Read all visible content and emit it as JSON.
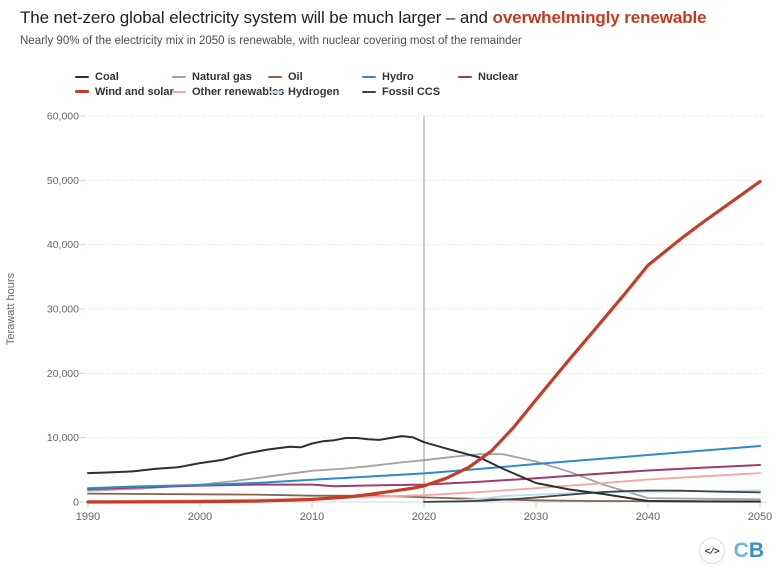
{
  "header": {
    "title_prefix": "The net-zero global electricity system will be much larger – and ",
    "title_emphasis": "overwhelmingly renewable",
    "subtitle": "Nearly 90% of the electricity mix in 2050 is renewable, with nuclear covering most of the remainder"
  },
  "footer": {
    "embed_icon_glyph": "</>",
    "logo_first": "C",
    "logo_second": "B"
  },
  "colors": {
    "title_text": "#1f1f1f",
    "title_emphasis": "#c43a20",
    "subtitle_text": "#4d4d4d",
    "axis_line": "#ccd6eb",
    "gridline": "#dddddd",
    "plotline": "#999999",
    "axis_text": "#666666",
    "legend_text": "#333333",
    "logo_c": "#6fb5e1",
    "logo_b": "#3e8ecb"
  },
  "chart_data": {
    "type": "line",
    "title": "The net-zero global electricity system will be much larger – and overwhelmingly renewable",
    "subtitle": "Nearly 90% of the electricity mix in 2050 is renewable, with nuclear covering most of the remainder",
    "xlabel": "",
    "ylabel": "Terawatt hours",
    "unit": "TWh",
    "xlim": [
      1990,
      2050
    ],
    "ylim": [
      0,
      60000
    ],
    "xticks": [
      1990,
      2000,
      2010,
      2020,
      2030,
      2040,
      2050
    ],
    "yticks": [
      0,
      10000,
      20000,
      30000,
      40000,
      50000,
      60000
    ],
    "ytick_labels": [
      "0",
      "10,000",
      "20,000",
      "30,000",
      "40,000",
      "50,000",
      "60,000"
    ],
    "grid": "horizontal-dotted",
    "legend_position": "top-left",
    "annotations": [
      {
        "type": "vertical-line",
        "x": 2020,
        "note": "historical / projection divide"
      }
    ],
    "series": [
      {
        "name": "Coal",
        "color": "#2f2f2f",
        "line_width": 2,
        "z": 8,
        "points": [
          [
            1990,
            4500
          ],
          [
            1992,
            4600
          ],
          [
            1994,
            4750
          ],
          [
            1996,
            5150
          ],
          [
            1998,
            5400
          ],
          [
            2000,
            6050
          ],
          [
            2002,
            6550
          ],
          [
            2004,
            7500
          ],
          [
            2006,
            8150
          ],
          [
            2008,
            8600
          ],
          [
            2009,
            8500
          ],
          [
            2010,
            9100
          ],
          [
            2011,
            9450
          ],
          [
            2012,
            9600
          ],
          [
            2013,
            9950
          ],
          [
            2014,
            9950
          ],
          [
            2015,
            9750
          ],
          [
            2016,
            9650
          ],
          [
            2017,
            9950
          ],
          [
            2018,
            10250
          ],
          [
            2019,
            10050
          ],
          [
            2020,
            9300
          ],
          [
            2022,
            8300
          ],
          [
            2025,
            6900
          ],
          [
            2027,
            5200
          ],
          [
            2030,
            2950
          ],
          [
            2033,
            1950
          ],
          [
            2036,
            1250
          ],
          [
            2040,
            150
          ],
          [
            2045,
            80
          ],
          [
            2050,
            60
          ]
        ]
      },
      {
        "name": "Natural gas",
        "color": "#a3a3a3",
        "line_width": 1.8,
        "z": 1,
        "points": [
          [
            1990,
            1750
          ],
          [
            1995,
            2100
          ],
          [
            2000,
            2700
          ],
          [
            2003,
            3250
          ],
          [
            2005,
            3700
          ],
          [
            2008,
            4400
          ],
          [
            2010,
            4850
          ],
          [
            2013,
            5200
          ],
          [
            2015,
            5550
          ],
          [
            2018,
            6150
          ],
          [
            2020,
            6500
          ],
          [
            2023,
            7100
          ],
          [
            2025,
            7450
          ],
          [
            2027,
            7450
          ],
          [
            2030,
            6300
          ],
          [
            2033,
            4700
          ],
          [
            2036,
            2700
          ],
          [
            2040,
            600
          ],
          [
            2045,
            500
          ],
          [
            2050,
            420
          ]
        ]
      },
      {
        "name": "Oil",
        "color": "#84644e",
        "line_width": 1.8,
        "z": 2,
        "points": [
          [
            1990,
            1300
          ],
          [
            1995,
            1250
          ],
          [
            2000,
            1200
          ],
          [
            2005,
            1150
          ],
          [
            2010,
            980
          ],
          [
            2015,
            960
          ],
          [
            2018,
            850
          ],
          [
            2020,
            720
          ],
          [
            2025,
            460
          ],
          [
            2030,
            260
          ],
          [
            2035,
            160
          ],
          [
            2040,
            120
          ],
          [
            2050,
            100
          ]
        ]
      },
      {
        "name": "Hydro",
        "color": "#3089cf",
        "line_width": 2,
        "z": 6,
        "points": [
          [
            1990,
            2150
          ],
          [
            1995,
            2450
          ],
          [
            2000,
            2650
          ],
          [
            2005,
            2950
          ],
          [
            2010,
            3450
          ],
          [
            2015,
            3950
          ],
          [
            2020,
            4450
          ],
          [
            2025,
            5150
          ],
          [
            2030,
            5900
          ],
          [
            2035,
            6600
          ],
          [
            2040,
            7300
          ],
          [
            2045,
            8000
          ],
          [
            2050,
            8700
          ]
        ]
      },
      {
        "name": "Nuclear",
        "color": "#a03c68",
        "line_width": 2,
        "z": 5,
        "points": [
          [
            1990,
            2000
          ],
          [
            1995,
            2300
          ],
          [
            2000,
            2550
          ],
          [
            2005,
            2700
          ],
          [
            2010,
            2700
          ],
          [
            2012,
            2450
          ],
          [
            2015,
            2570
          ],
          [
            2020,
            2700
          ],
          [
            2025,
            3150
          ],
          [
            2030,
            3700
          ],
          [
            2035,
            4300
          ],
          [
            2040,
            4900
          ],
          [
            2045,
            5350
          ],
          [
            2050,
            5750
          ]
        ]
      },
      {
        "name": "Wind and solar",
        "color": "#c63c24",
        "line_width": 3.2,
        "z": 9,
        "points": [
          [
            1990,
            5
          ],
          [
            1995,
            15
          ],
          [
            2000,
            40
          ],
          [
            2005,
            130
          ],
          [
            2010,
            400
          ],
          [
            2013,
            750
          ],
          [
            2015,
            1150
          ],
          [
            2017,
            1650
          ],
          [
            2019,
            2150
          ],
          [
            2020,
            2500
          ],
          [
            2022,
            3700
          ],
          [
            2024,
            5400
          ],
          [
            2026,
            7900
          ],
          [
            2028,
            11600
          ],
          [
            2030,
            15900
          ],
          [
            2033,
            22200
          ],
          [
            2035,
            26300
          ],
          [
            2038,
            32500
          ],
          [
            2040,
            36800
          ],
          [
            2043,
            41000
          ],
          [
            2045,
            43600
          ],
          [
            2050,
            49800
          ]
        ]
      },
      {
        "name": "Other renewables",
        "color": "#f3a6a2",
        "line_width": 1.8,
        "z": 3,
        "points": [
          [
            1990,
            130
          ],
          [
            1995,
            180
          ],
          [
            2000,
            250
          ],
          [
            2005,
            350
          ],
          [
            2010,
            500
          ],
          [
            2015,
            780
          ],
          [
            2020,
            1050
          ],
          [
            2025,
            1550
          ],
          [
            2030,
            2150
          ],
          [
            2035,
            2800
          ],
          [
            2040,
            3500
          ],
          [
            2045,
            4000
          ],
          [
            2050,
            4500
          ]
        ]
      },
      {
        "name": "Hydrogen",
        "color": "#b6dfe9",
        "line_width": 1.8,
        "z": 4,
        "points": [
          [
            2020,
            10
          ],
          [
            2023,
            250
          ],
          [
            2025,
            500
          ],
          [
            2027,
            900
          ],
          [
            2030,
            1150
          ],
          [
            2033,
            1350
          ],
          [
            2036,
            1500
          ],
          [
            2040,
            1600
          ],
          [
            2045,
            1700
          ],
          [
            2050,
            1800
          ]
        ]
      },
      {
        "name": "Fossil CCS",
        "color": "#424242",
        "line_width": 1.8,
        "z": 7,
        "points": [
          [
            2020,
            10
          ],
          [
            2023,
            80
          ],
          [
            2025,
            180
          ],
          [
            2028,
            450
          ],
          [
            2030,
            700
          ],
          [
            2033,
            1150
          ],
          [
            2036,
            1550
          ],
          [
            2038,
            1700
          ],
          [
            2040,
            1780
          ],
          [
            2043,
            1750
          ],
          [
            2046,
            1620
          ],
          [
            2050,
            1500
          ]
        ]
      }
    ]
  }
}
